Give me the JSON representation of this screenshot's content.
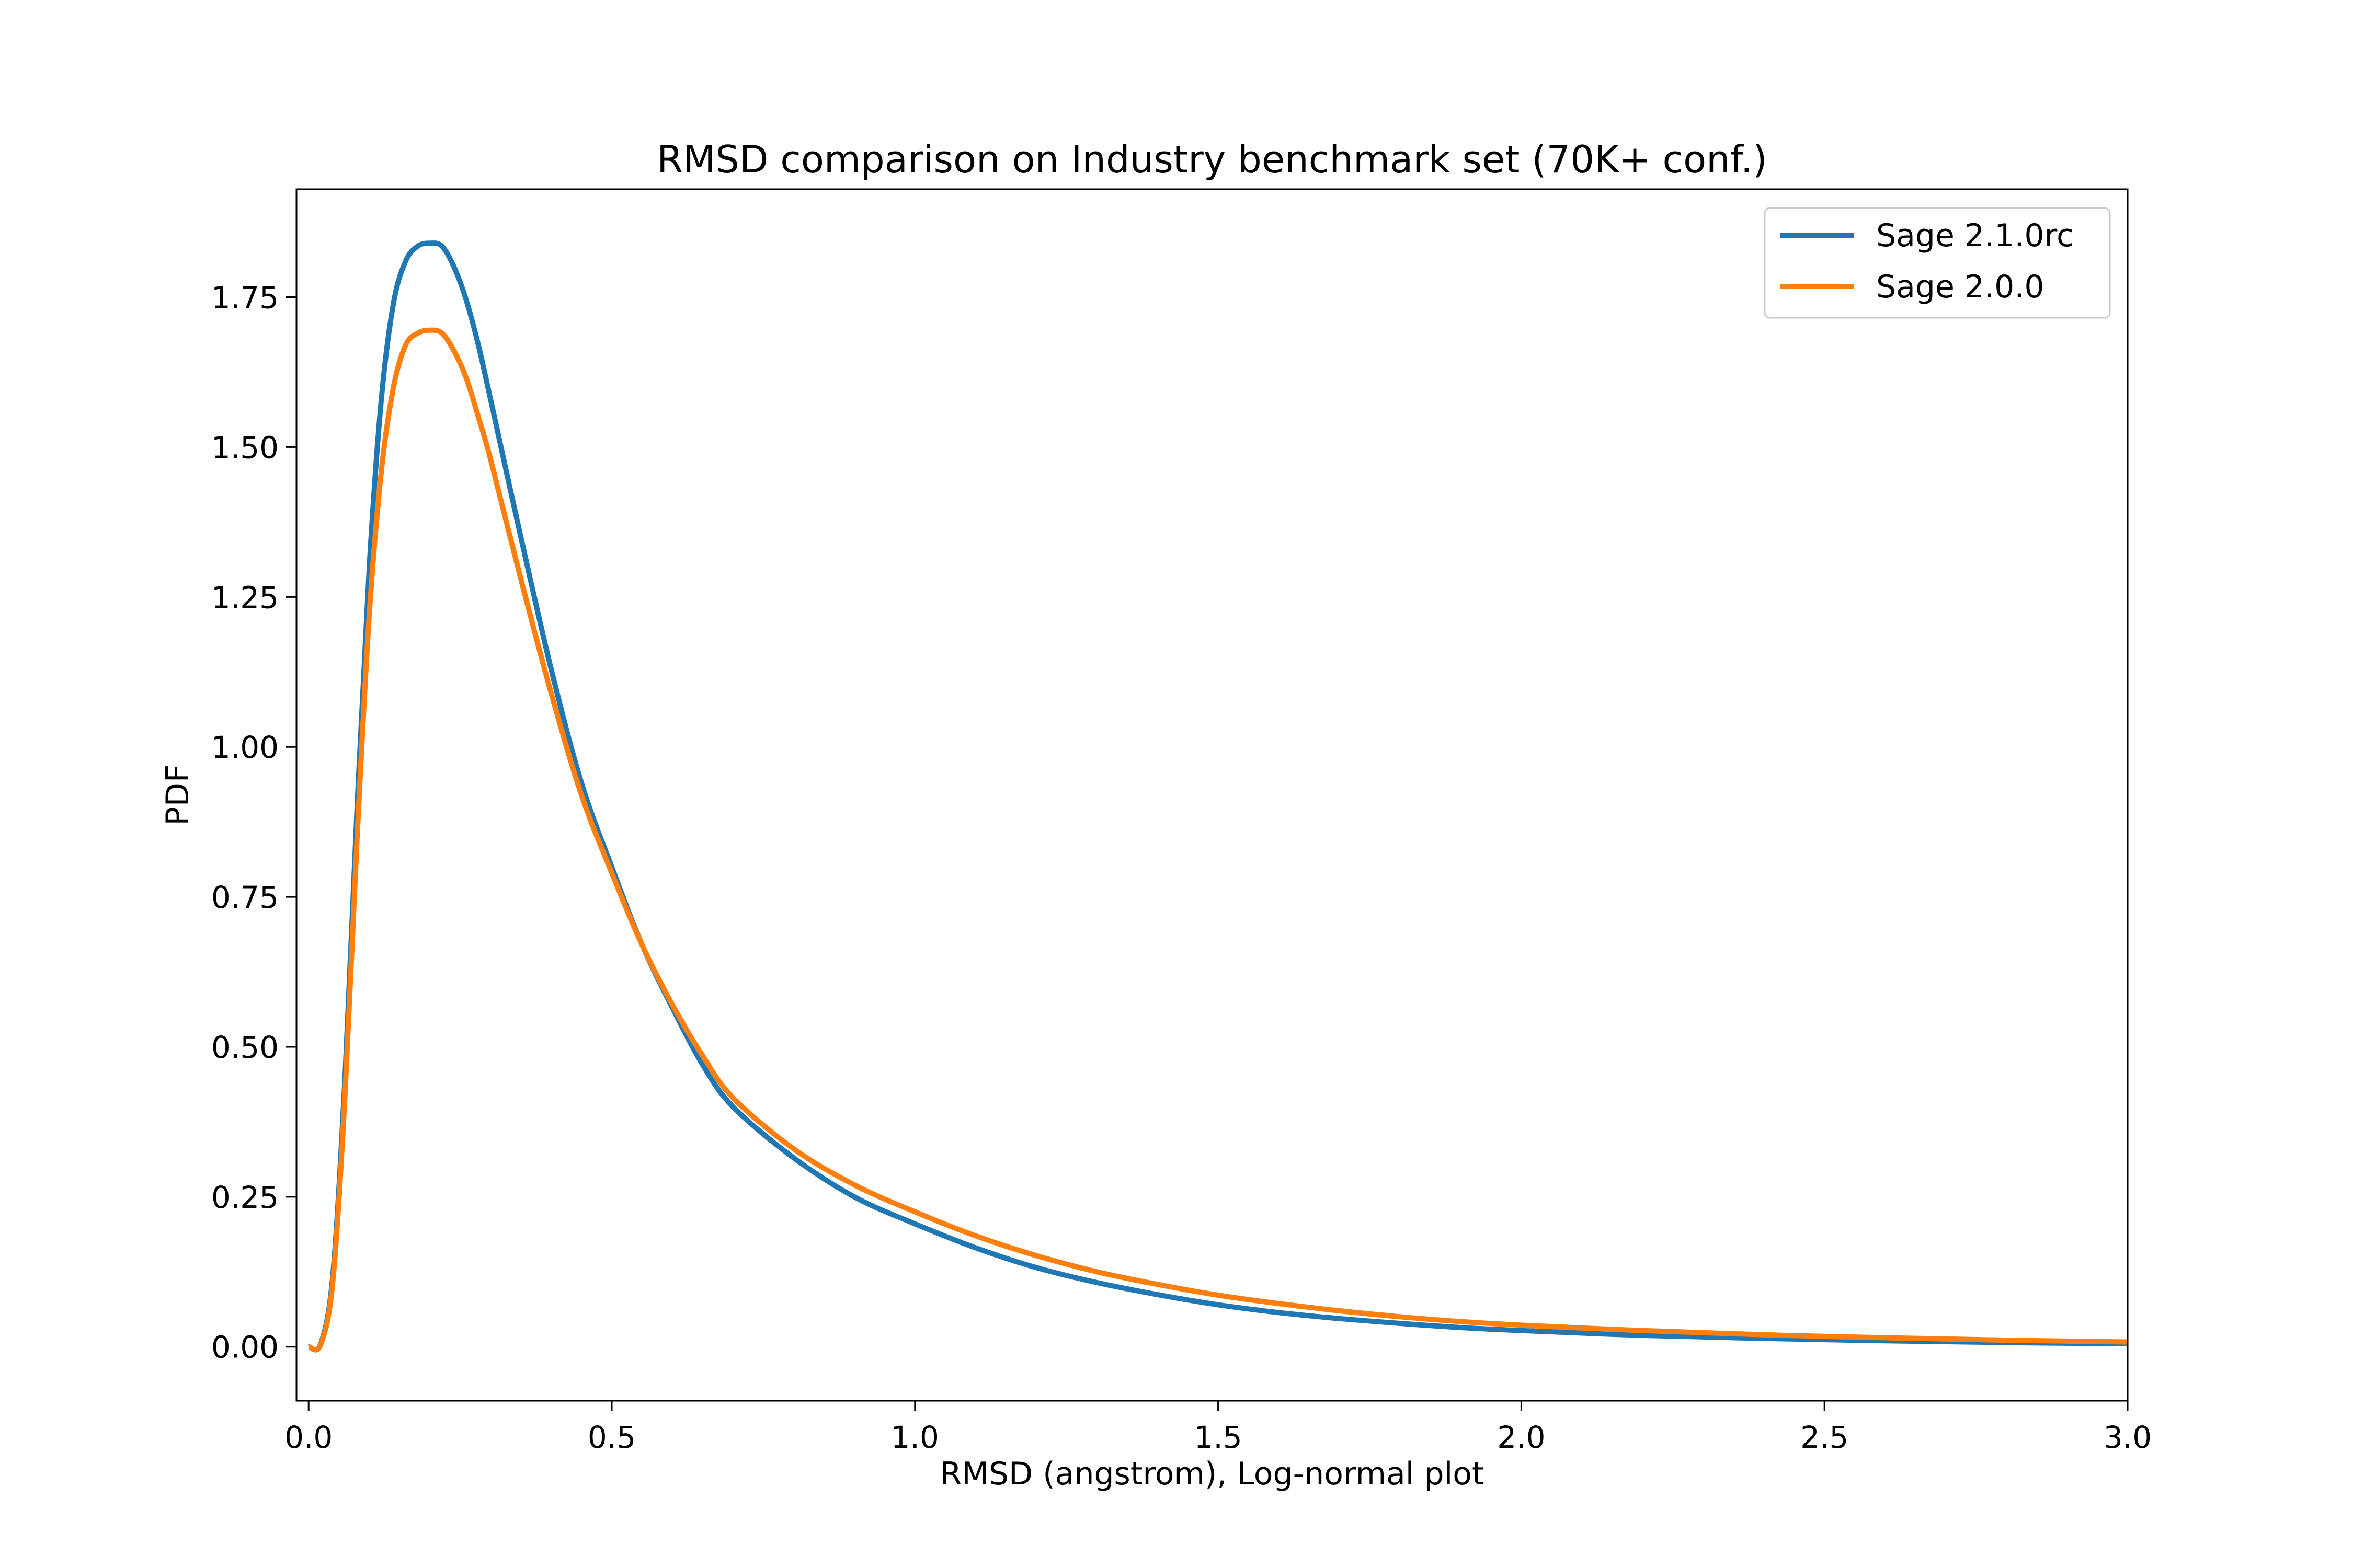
{
  "chart_data": {
    "type": "line",
    "title": "RMSD comparison on Industry benchmark set (70K+ conf.)",
    "xlabel": "RMSD (angstrom), Log-normal plot",
    "ylabel": "PDF",
    "xlim": [
      -0.02,
      3.0
    ],
    "ylim": [
      -0.09,
      1.93
    ],
    "x_ticks": [
      "0.0",
      "0.5",
      "1.0",
      "1.5",
      "2.0",
      "2.5",
      "3.0"
    ],
    "y_ticks": [
      "0.00",
      "0.25",
      "0.50",
      "0.75",
      "1.00",
      "1.25",
      "1.50",
      "1.75"
    ],
    "grid": false,
    "legend": "top-right",
    "x": [
      0.0,
      0.02,
      0.04,
      0.06,
      0.08,
      0.1,
      0.12,
      0.14,
      0.16,
      0.18,
      0.2,
      0.22,
      0.24,
      0.26,
      0.28,
      0.3,
      0.35,
      0.4,
      0.45,
      0.5,
      0.55,
      0.6,
      0.65,
      0.7,
      0.8,
      0.9,
      1.0,
      1.1,
      1.2,
      1.3,
      1.4,
      1.5,
      1.6,
      1.7,
      1.8,
      1.9,
      2.0,
      2.2,
      2.4,
      2.6,
      2.8,
      3.0
    ],
    "series": [
      {
        "name": "Sage 2.1.0rc",
        "color": "#1f77b4",
        "values": [
          0.0,
          0.005,
          0.12,
          0.45,
          0.9,
          1.3,
          1.58,
          1.74,
          1.81,
          1.835,
          1.84,
          1.835,
          1.8,
          1.745,
          1.67,
          1.58,
          1.35,
          1.13,
          0.94,
          0.8,
          0.67,
          0.565,
          0.47,
          0.4,
          0.315,
          0.25,
          0.205,
          0.165,
          0.132,
          0.107,
          0.087,
          0.07,
          0.057,
          0.047,
          0.039,
          0.032,
          0.027,
          0.019,
          0.014,
          0.01,
          0.007,
          0.005
        ]
      },
      {
        "name": "Sage 2.0.0",
        "color": "#ff7f0e",
        "values": [
          0.0,
          0.004,
          0.11,
          0.42,
          0.85,
          1.22,
          1.46,
          1.6,
          1.67,
          1.69,
          1.695,
          1.69,
          1.66,
          1.615,
          1.55,
          1.48,
          1.28,
          1.09,
          0.92,
          0.79,
          0.67,
          0.57,
          0.485,
          0.415,
          0.33,
          0.27,
          0.225,
          0.185,
          0.152,
          0.125,
          0.104,
          0.086,
          0.072,
          0.06,
          0.05,
          0.042,
          0.036,
          0.027,
          0.02,
          0.015,
          0.011,
          0.008
        ]
      }
    ]
  }
}
